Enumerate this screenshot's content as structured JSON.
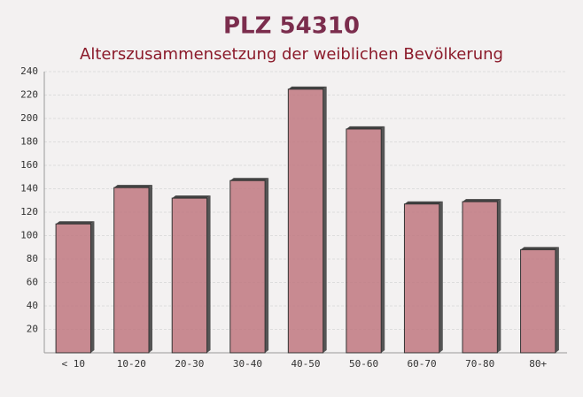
{
  "chart_data": {
    "type": "bar",
    "title": "PLZ 54310",
    "subtitle": "Alterszusammensetzung der weiblichen Bevölkerung",
    "categories": [
      "< 10",
      "10-20",
      "20-30",
      "30-40",
      "40-50",
      "50-60",
      "60-70",
      "70-80",
      "80+"
    ],
    "values": [
      110,
      141,
      132,
      147,
      225,
      191,
      127,
      129,
      88
    ],
    "color": "#c07880",
    "ylim": [
      0,
      240
    ],
    "yticks": [
      20,
      40,
      60,
      80,
      100,
      120,
      140,
      160,
      180,
      200,
      220,
      240
    ],
    "grid": true
  }
}
